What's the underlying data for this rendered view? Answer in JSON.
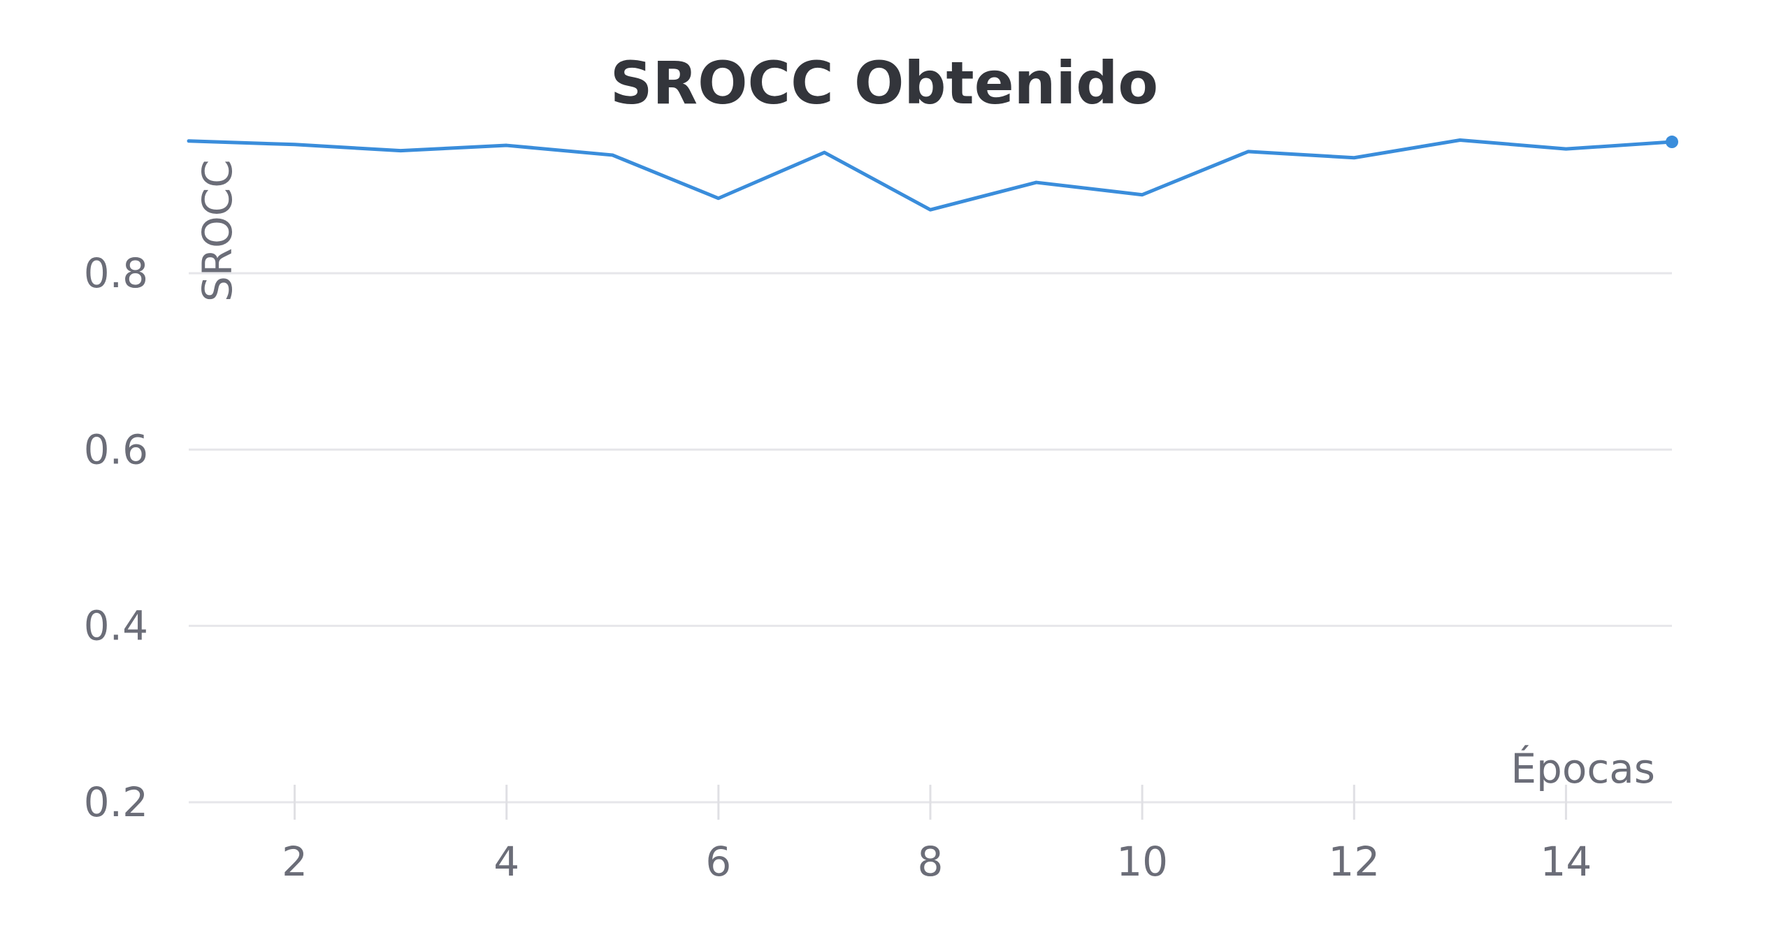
{
  "chart_data": {
    "type": "line",
    "title": "SROCC Obtenido",
    "xlabel": "Épocas",
    "ylabel": "SROCC",
    "x": [
      1,
      2,
      3,
      4,
      5,
      6,
      7,
      8,
      9,
      10,
      11,
      12,
      13,
      14,
      15
    ],
    "series": [
      {
        "values": [
          0.95,
          0.946,
          0.939,
          0.945,
          0.934,
          0.885,
          0.937,
          0.872,
          0.903,
          0.889,
          0.938,
          0.931,
          0.951,
          0.941,
          0.949
        ],
        "color": "#3a8ddb"
      }
    ],
    "x_ticks": [
      "2",
      "4",
      "6",
      "8",
      "10",
      "12",
      "14"
    ],
    "y_ticks": [
      "0.2",
      "0.4",
      "0.6",
      "0.8"
    ],
    "xlim": [
      1,
      15
    ],
    "ylim": [
      0.2,
      0.95
    ],
    "grid": "horizontal",
    "legend": "none"
  }
}
